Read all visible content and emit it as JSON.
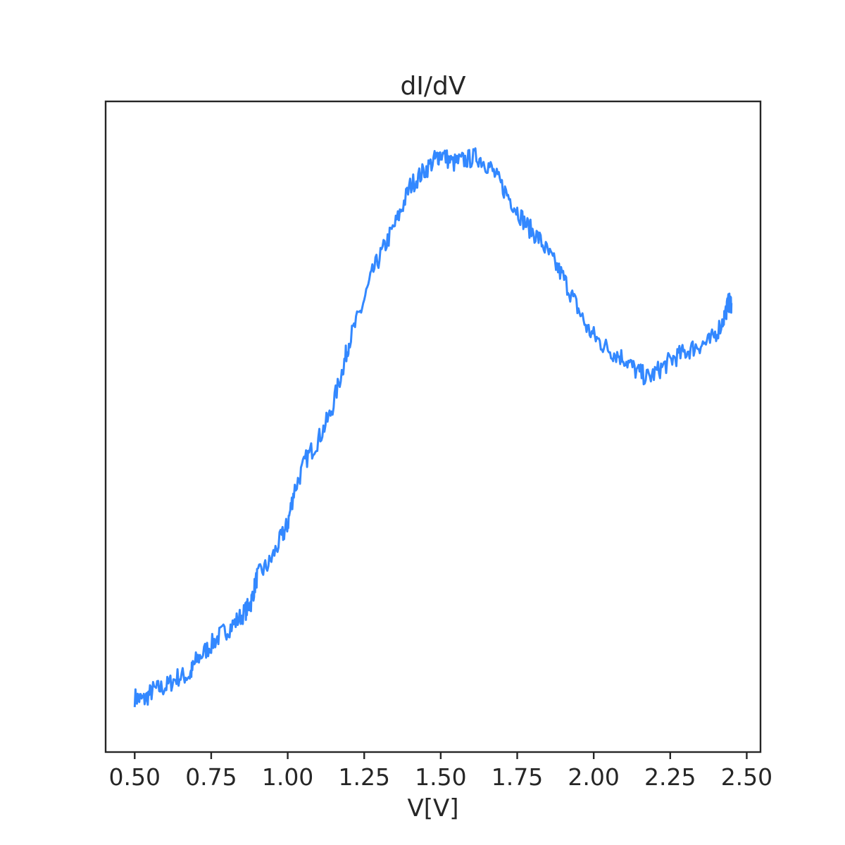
{
  "chart_data": {
    "type": "line",
    "title": "dI/dV",
    "xlabel": "V[V]",
    "ylabel": "",
    "xlim": [
      0.405,
      2.545
    ],
    "ylim": [
      0,
      1
    ],
    "x_ticks": [
      "0.50",
      "0.75",
      "1.00",
      "1.25",
      "1.50",
      "1.75",
      "2.00",
      "2.25",
      "2.50"
    ],
    "y_ticks_visible": false,
    "grid": false,
    "series_color": "#3388ff",
    "series": [
      {
        "points": [
          [
            0.5,
            0.084
          ],
          [
            0.53,
            0.08
          ],
          [
            0.56,
            0.095
          ],
          [
            0.6,
            0.1
          ],
          [
            0.64,
            0.115
          ],
          [
            0.68,
            0.118
          ],
          [
            0.7,
            0.14
          ],
          [
            0.74,
            0.16
          ],
          [
            0.78,
            0.18
          ],
          [
            0.82,
            0.195
          ],
          [
            0.86,
            0.215
          ],
          [
            0.88,
            0.23
          ],
          [
            0.9,
            0.27
          ],
          [
            0.94,
            0.29
          ],
          [
            0.98,
            0.33
          ],
          [
            1.0,
            0.35
          ],
          [
            1.02,
            0.4
          ],
          [
            1.06,
            0.45
          ],
          [
            1.1,
            0.48
          ],
          [
            1.14,
            0.52
          ],
          [
            1.18,
            0.59
          ],
          [
            1.2,
            0.63
          ],
          [
            1.24,
            0.68
          ],
          [
            1.28,
            0.74
          ],
          [
            1.32,
            0.78
          ],
          [
            1.36,
            0.82
          ],
          [
            1.4,
            0.87
          ],
          [
            1.44,
            0.89
          ],
          [
            1.48,
            0.91
          ],
          [
            1.5,
            0.92
          ],
          [
            1.54,
            0.905
          ],
          [
            1.58,
            0.91
          ],
          [
            1.62,
            0.915
          ],
          [
            1.66,
            0.9
          ],
          [
            1.7,
            0.87
          ],
          [
            1.74,
            0.84
          ],
          [
            1.78,
            0.81
          ],
          [
            1.82,
            0.79
          ],
          [
            1.86,
            0.76
          ],
          [
            1.9,
            0.73
          ],
          [
            1.94,
            0.69
          ],
          [
            1.98,
            0.65
          ],
          [
            2.02,
            0.63
          ],
          [
            2.06,
            0.615
          ],
          [
            2.1,
            0.605
          ],
          [
            2.14,
            0.585
          ],
          [
            2.18,
            0.575
          ],
          [
            2.22,
            0.59
          ],
          [
            2.26,
            0.605
          ],
          [
            2.3,
            0.615
          ],
          [
            2.34,
            0.625
          ],
          [
            2.38,
            0.63
          ],
          [
            2.42,
            0.66
          ],
          [
            2.44,
            0.69
          ],
          [
            2.45,
            0.69
          ]
        ]
      }
    ]
  }
}
